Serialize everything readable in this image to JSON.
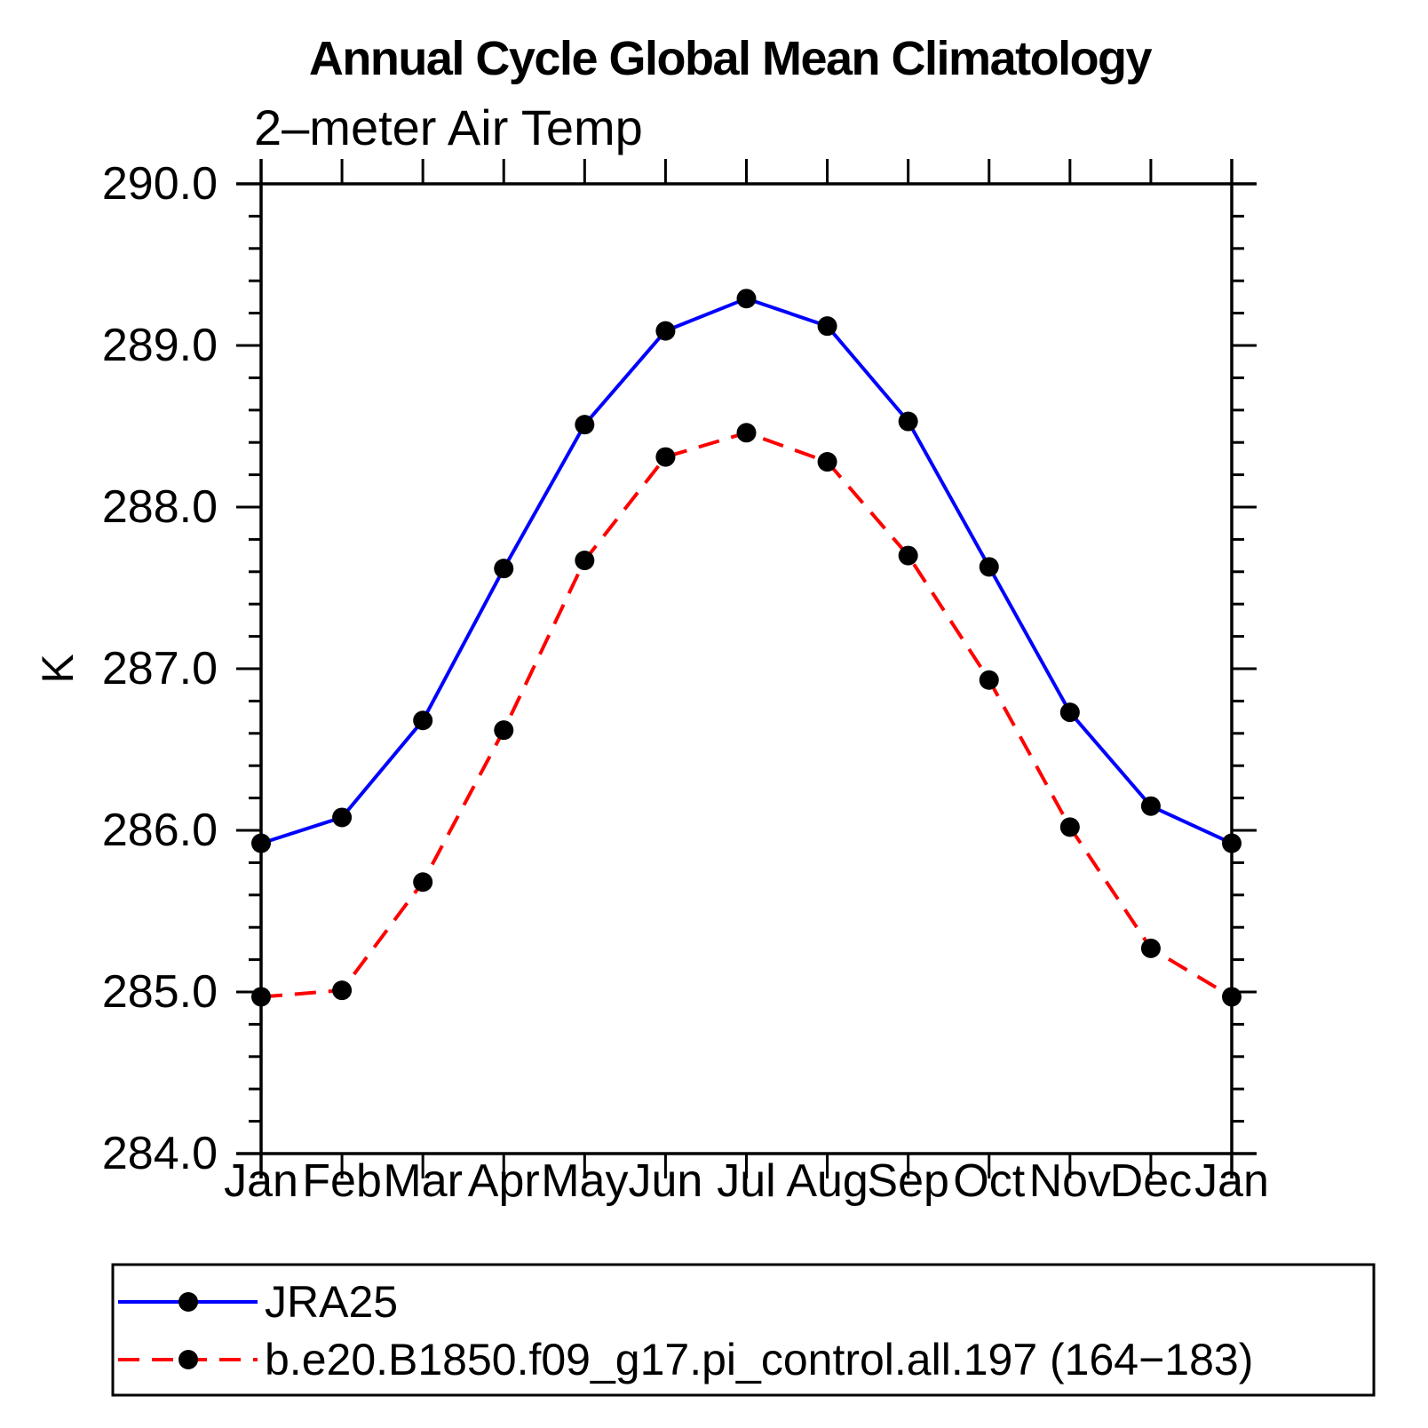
{
  "title": "Annual Cycle Global Mean Climatology",
  "subtitle": "2–meter Air Temp",
  "ylabel": "K",
  "chart_data": {
    "type": "line",
    "categories": [
      "Jan",
      "Feb",
      "Mar",
      "Apr",
      "May",
      "Jun",
      "Jul",
      "Aug",
      "Sep",
      "Oct",
      "Nov",
      "Dec",
      "Jan"
    ],
    "series": [
      {
        "name": "JRA25",
        "color": "#0000ff",
        "line_style": "solid",
        "marker": "circle",
        "marker_color": "#000000",
        "values": [
          285.92,
          286.08,
          286.68,
          287.62,
          288.51,
          289.09,
          289.29,
          289.12,
          288.53,
          287.63,
          286.73,
          286.15,
          285.92
        ]
      },
      {
        "name": "b.e20.B1850.f09_g17.pi_control.all.197 (164−183)",
        "color": "#ff0000",
        "line_style": "dashed",
        "marker": "circle",
        "marker_color": "#000000",
        "values": [
          284.97,
          285.01,
          285.68,
          286.62,
          287.67,
          288.31,
          288.46,
          288.28,
          287.7,
          286.93,
          286.02,
          285.27,
          284.97
        ]
      }
    ],
    "ylim": [
      284.0,
      290.0
    ],
    "ytick_major": 1.0,
    "ytick_minor": 0.2,
    "ytick_labels": [
      "284.0",
      "285.0",
      "286.0",
      "287.0",
      "288.0",
      "289.0",
      "290.0"
    ],
    "grid": false,
    "legend_position": "bottom"
  }
}
